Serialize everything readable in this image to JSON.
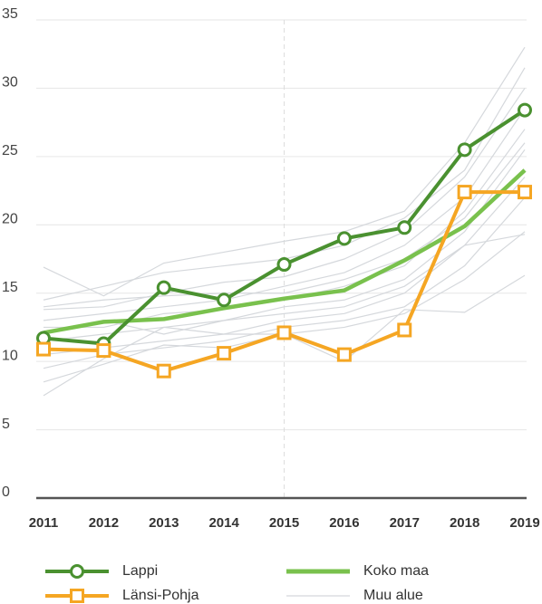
{
  "chart_data": {
    "type": "line",
    "x": [
      2011,
      2012,
      2013,
      2014,
      2015,
      2016,
      2017,
      2018,
      2019
    ],
    "xlim": [
      2011,
      2019
    ],
    "xticks": [
      2011,
      2012,
      2013,
      2014,
      2015,
      2016,
      2017,
      2018,
      2019
    ],
    "ylim": [
      0,
      35
    ],
    "yticks": [
      0,
      5,
      10,
      15,
      20,
      25,
      30,
      35
    ],
    "grid": true,
    "reference_line_x": 2015,
    "series": [
      {
        "name": "Lappi",
        "color": "#4a9130",
        "marker": "circle",
        "values": [
          11.7,
          11.3,
          15.4,
          14.5,
          17.1,
          19.0,
          19.8,
          25.5,
          28.4
        ]
      },
      {
        "name": "Länsi-Pohja",
        "color": "#f5a623",
        "marker": "square",
        "values": [
          10.9,
          10.8,
          9.3,
          10.6,
          12.1,
          10.5,
          12.3,
          22.4,
          22.4
        ]
      },
      {
        "name": "Koko maa",
        "color": "#79c14d",
        "marker": "none",
        "values": [
          12.1,
          12.9,
          13.1,
          13.9,
          14.6,
          15.2,
          17.4,
          19.9,
          24.0
        ]
      }
    ],
    "background": {
      "name": "Muu alue",
      "color": "#d5d8dc",
      "lines": [
        [
          16.9,
          14.8,
          17.2,
          18.0,
          18.8,
          19.5,
          21.0,
          26.0,
          33.0
        ],
        [
          14.5,
          15.5,
          16.5,
          17.0,
          17.5,
          18.5,
          20.5,
          24.0,
          31.5
        ],
        [
          13.8,
          14.0,
          15.0,
          15.8,
          16.2,
          17.5,
          19.5,
          23.5,
          30.0
        ],
        [
          13.0,
          13.5,
          14.0,
          14.5,
          15.5,
          16.5,
          18.5,
          22.0,
          28.5
        ],
        [
          12.5,
          12.5,
          13.5,
          13.8,
          14.5,
          15.5,
          17.0,
          21.0,
          27.0
        ],
        [
          14.0,
          14.5,
          14.8,
          15.0,
          15.0,
          16.0,
          17.5,
          20.5,
          26.0
        ],
        [
          11.5,
          12.0,
          12.5,
          13.0,
          14.0,
          14.5,
          16.0,
          19.5,
          25.5
        ],
        [
          10.5,
          11.0,
          11.5,
          12.0,
          13.0,
          13.5,
          15.0,
          18.5,
          23.5
        ],
        [
          9.5,
          10.5,
          11.0,
          11.5,
          12.5,
          13.0,
          14.0,
          17.0,
          22.0
        ],
        [
          8.5,
          9.8,
          11.2,
          11.0,
          12.0,
          12.5,
          13.5,
          16.0,
          19.5
        ],
        [
          7.5,
          10.2,
          12.5,
          12.0,
          12.0,
          10.0,
          13.8,
          13.6,
          16.3
        ],
        [
          12.0,
          13.0,
          12.0,
          13.0,
          13.5,
          14.0,
          15.5,
          18.5,
          19.3
        ]
      ]
    }
  }
}
